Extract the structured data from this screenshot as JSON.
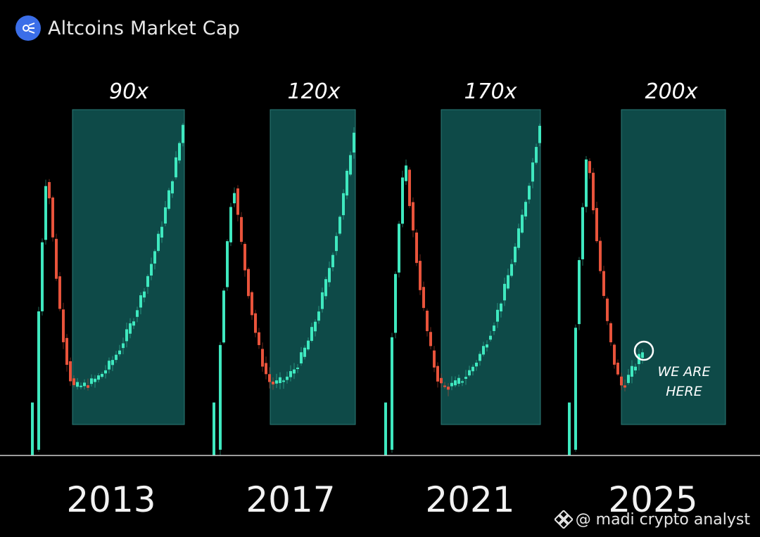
{
  "header": {
    "title": "Altcoins Market Cap",
    "logo_icon": "altcoins-logo-icon"
  },
  "watermark": {
    "icon": "binance-icon",
    "text": "@ madi crypto analyst"
  },
  "colors": {
    "up": "#3fe8bf",
    "down": "#e8533b",
    "box_fill": "#0e4a48",
    "box_stroke": "#2b7a76",
    "baseline": "#cfcfcf"
  },
  "chart_data": {
    "type": "candlestick",
    "title": "Altcoins Market Cap",
    "cycles": [
      {
        "year": "2013",
        "multiplier": "90x",
        "start": 0.02,
        "peak1": 0.82,
        "bottom": 0.12,
        "peak2": 1.0,
        "note": ""
      },
      {
        "year": "2017",
        "multiplier": "120x",
        "start": 0.02,
        "peak1": 0.78,
        "bottom": 0.13,
        "peak2": 1.0,
        "note": ""
      },
      {
        "year": "2021",
        "multiplier": "170x",
        "start": 0.02,
        "peak1": 0.85,
        "bottom": 0.12,
        "peak2": 1.0,
        "note": ""
      },
      {
        "year": "2025",
        "multiplier": "200x",
        "start": 0.02,
        "peak1": 0.88,
        "bottom": 0.12,
        "peak2": 0.25,
        "note": "WE ARE HERE"
      }
    ]
  }
}
